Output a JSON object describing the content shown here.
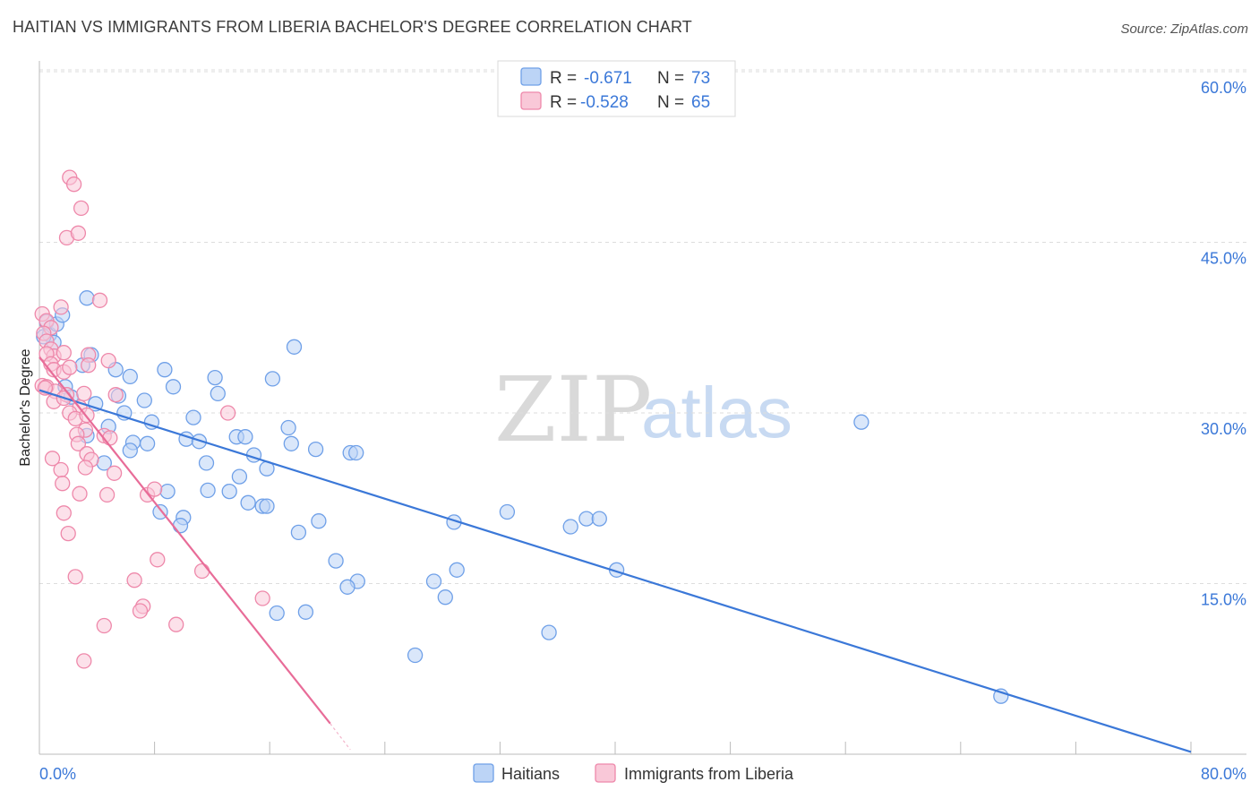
{
  "header": {
    "title": "HAITIAN VS IMMIGRANTS FROM LIBERIA BACHELOR'S DEGREE CORRELATION CHART",
    "source": "Source: ZipAtlas.com"
  },
  "watermark": {
    "zip": "ZIP",
    "atlas": "atlas"
  },
  "legend": {
    "rows": [
      {
        "r_label": "R =",
        "r_value": "-0.671",
        "n_label": "N =",
        "n_value": "73",
        "color": "#6fa0e8",
        "fill": "#bcd4f6"
      },
      {
        "r_label": "R =",
        "r_value": "-0.528",
        "n_label": "N =",
        "n_value": "65",
        "color": "#ee88aa",
        "fill": "#f9c8d8"
      }
    ]
  },
  "bottom_legend": {
    "items": [
      {
        "label": "Haitians"
      },
      {
        "label": "Immigrants from Liberia"
      }
    ]
  },
  "chart_data": {
    "type": "scatter",
    "title": "HAITIAN VS IMMIGRANTS FROM LIBERIA BACHELOR'S DEGREE CORRELATION CHART",
    "xlabel": "",
    "ylabel": "Bachelor's Degree",
    "xlim": [
      0,
      80
    ],
    "ylim": [
      0,
      64
    ],
    "x_tick_labels": [
      "0.0%",
      "80.0%"
    ],
    "y_ticks": [
      15,
      30,
      45,
      60
    ],
    "y_tick_labels": [
      "15.0%",
      "30.0%",
      "45.0%",
      "60.0%"
    ],
    "grid": true,
    "series": [
      {
        "name": "Haitians",
        "color": "#3b78d8",
        "marker_fill": "#bcd4f6",
        "marker_stroke": "#6fa0e8",
        "trendline": {
          "x0": 0,
          "y0": 32.0,
          "x1": 80,
          "y1": 0.2
        },
        "points": [
          [
            0.5,
            38.0
          ],
          [
            0.7,
            36.9
          ],
          [
            1.0,
            36.2
          ],
          [
            1.2,
            37.8
          ],
          [
            1.6,
            38.6
          ],
          [
            3.3,
            40.1
          ],
          [
            3.6,
            35.1
          ],
          [
            3.0,
            34.2
          ],
          [
            5.3,
            33.8
          ],
          [
            6.3,
            33.2
          ],
          [
            8.7,
            33.8
          ],
          [
            1.8,
            32.3
          ],
          [
            2.2,
            31.4
          ],
          [
            3.9,
            30.8
          ],
          [
            5.5,
            31.5
          ],
          [
            7.3,
            31.1
          ],
          [
            9.3,
            32.3
          ],
          [
            12.2,
            33.1
          ],
          [
            12.4,
            31.7
          ],
          [
            16.2,
            33.0
          ],
          [
            17.7,
            35.8
          ],
          [
            5.9,
            30.0
          ],
          [
            7.8,
            29.2
          ],
          [
            10.7,
            29.6
          ],
          [
            17.3,
            28.7
          ],
          [
            3.3,
            28.0
          ],
          [
            4.8,
            28.8
          ],
          [
            6.5,
            27.4
          ],
          [
            7.5,
            27.3
          ],
          [
            10.2,
            27.7
          ],
          [
            11.1,
            27.5
          ],
          [
            13.7,
            27.9
          ],
          [
            14.3,
            27.9
          ],
          [
            17.5,
            27.3
          ],
          [
            19.2,
            26.8
          ],
          [
            21.6,
            26.5
          ],
          [
            22.0,
            26.5
          ],
          [
            6.3,
            26.7
          ],
          [
            4.5,
            25.6
          ],
          [
            11.6,
            25.6
          ],
          [
            14.9,
            26.3
          ],
          [
            15.8,
            25.1
          ],
          [
            13.9,
            24.4
          ],
          [
            8.9,
            23.1
          ],
          [
            11.7,
            23.2
          ],
          [
            13.2,
            23.1
          ],
          [
            14.5,
            22.1
          ],
          [
            15.5,
            21.8
          ],
          [
            15.8,
            21.8
          ],
          [
            8.4,
            21.3
          ],
          [
            10.0,
            20.8
          ],
          [
            9.8,
            20.1
          ],
          [
            19.4,
            20.5
          ],
          [
            18.0,
            19.5
          ],
          [
            28.8,
            20.4
          ],
          [
            32.5,
            21.3
          ],
          [
            36.9,
            20.0
          ],
          [
            38.0,
            20.7
          ],
          [
            38.9,
            20.7
          ],
          [
            20.6,
            17.0
          ],
          [
            29.0,
            16.2
          ],
          [
            40.1,
            16.2
          ],
          [
            22.1,
            15.2
          ],
          [
            21.4,
            14.7
          ],
          [
            27.4,
            15.2
          ],
          [
            28.2,
            13.8
          ],
          [
            16.5,
            12.4
          ],
          [
            18.5,
            12.5
          ],
          [
            26.1,
            8.7
          ],
          [
            35.4,
            10.7
          ],
          [
            57.1,
            29.2
          ],
          [
            66.8,
            5.1
          ],
          [
            0.3,
            36.7
          ]
        ]
      },
      {
        "name": "Immigrants from Liberia",
        "color": "#e86c98",
        "marker_fill": "#f9c8d8",
        "marker_stroke": "#ee88aa",
        "trendline": {
          "x0": 0,
          "y0": 34.9,
          "x1": 20.2,
          "y1": 2.7
        },
        "trendline_dashed_extension": {
          "x0": 20.2,
          "y0": 2.7,
          "x1": 21.6,
          "y1": 0.4
        },
        "points": [
          [
            2.1,
            50.7
          ],
          [
            2.4,
            50.1
          ],
          [
            2.9,
            48.0
          ],
          [
            1.9,
            45.4
          ],
          [
            2.7,
            45.8
          ],
          [
            1.5,
            39.3
          ],
          [
            4.2,
            39.9
          ],
          [
            0.2,
            38.7
          ],
          [
            0.5,
            38.1
          ],
          [
            0.8,
            37.5
          ],
          [
            0.3,
            37.0
          ],
          [
            0.5,
            36.3
          ],
          [
            0.8,
            35.6
          ],
          [
            1.0,
            35.0
          ],
          [
            0.5,
            35.2
          ],
          [
            1.7,
            35.3
          ],
          [
            3.4,
            35.1
          ],
          [
            4.8,
            34.6
          ],
          [
            0.8,
            34.3
          ],
          [
            1.0,
            33.8
          ],
          [
            1.7,
            33.6
          ],
          [
            2.1,
            34.0
          ],
          [
            3.4,
            34.2
          ],
          [
            0.2,
            32.4
          ],
          [
            0.5,
            32.3
          ],
          [
            1.1,
            31.9
          ],
          [
            1.9,
            31.6
          ],
          [
            3.1,
            31.7
          ],
          [
            5.3,
            31.6
          ],
          [
            1.0,
            31.0
          ],
          [
            1.7,
            31.3
          ],
          [
            2.8,
            30.5
          ],
          [
            2.1,
            30.0
          ],
          [
            2.5,
            29.5
          ],
          [
            3.3,
            29.8
          ],
          [
            13.1,
            30.0
          ],
          [
            3.2,
            28.5
          ],
          [
            4.5,
            28.0
          ],
          [
            4.9,
            27.8
          ],
          [
            2.6,
            28.1
          ],
          [
            2.7,
            27.3
          ],
          [
            3.3,
            26.4
          ],
          [
            3.6,
            25.9
          ],
          [
            0.9,
            26.0
          ],
          [
            1.5,
            25.0
          ],
          [
            3.2,
            25.2
          ],
          [
            5.2,
            24.7
          ],
          [
            1.6,
            23.8
          ],
          [
            2.8,
            22.9
          ],
          [
            4.7,
            22.8
          ],
          [
            7.5,
            22.8
          ],
          [
            8.0,
            23.3
          ],
          [
            1.7,
            21.2
          ],
          [
            2.0,
            19.4
          ],
          [
            8.2,
            17.1
          ],
          [
            11.3,
            16.1
          ],
          [
            15.5,
            13.7
          ],
          [
            2.5,
            15.6
          ],
          [
            6.6,
            15.3
          ],
          [
            7.2,
            13.0
          ],
          [
            7.0,
            12.6
          ],
          [
            4.5,
            11.3
          ],
          [
            9.5,
            11.4
          ],
          [
            3.1,
            8.2
          ],
          [
            0.4,
            32.2
          ]
        ]
      }
    ]
  }
}
